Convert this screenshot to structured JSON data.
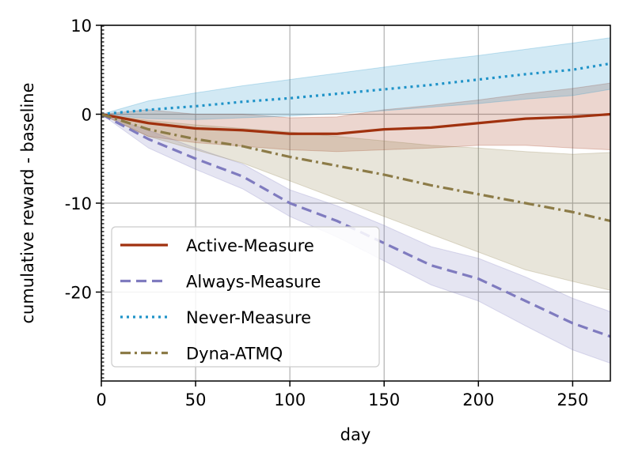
{
  "chart_data": {
    "type": "line",
    "title": "",
    "xlabel": "day",
    "ylabel": "cumulative reward - baseline",
    "xlim": [
      0,
      270
    ],
    "ylim": [
      -30,
      10
    ],
    "grid": true,
    "legend_position": "lower-left",
    "x_ticks": [
      0,
      50,
      100,
      150,
      200,
      250
    ],
    "x_tick_labels": [
      "0",
      "50",
      "100",
      "150",
      "200",
      "250"
    ],
    "y_ticks": [
      10,
      0,
      -10,
      -20
    ],
    "y_tick_labels": [
      "10",
      "0",
      "-10",
      "-20"
    ],
    "x": [
      0,
      25,
      50,
      75,
      100,
      125,
      150,
      175,
      200,
      225,
      250,
      270
    ],
    "series": [
      {
        "name": "Active-Measure",
        "color": "#a0310e",
        "dash": "solid",
        "values": [
          0,
          -1.0,
          -1.6,
          -1.8,
          -2.2,
          -2.2,
          -1.7,
          -1.5,
          -1.0,
          -0.5,
          -0.3,
          0.0
        ],
        "lower": [
          0,
          -2.5,
          -3.2,
          -3.6,
          -4.0,
          -4.2,
          -4.0,
          -3.8,
          -3.5,
          -3.5,
          -3.8,
          -4.0
        ],
        "upper": [
          0,
          0.5,
          0.0,
          0.0,
          -0.4,
          -0.3,
          0.5,
          1.0,
          1.6,
          2.3,
          2.9,
          3.5
        ]
      },
      {
        "name": "Always-Measure",
        "color": "#7f7bbf",
        "dash": "dashed",
        "values": [
          0,
          -2.8,
          -5.0,
          -7.0,
          -10.0,
          -12.0,
          -14.5,
          -17.0,
          -18.5,
          -21.0,
          -23.5,
          -25.0
        ],
        "lower": [
          0,
          -3.8,
          -6.2,
          -8.4,
          -11.5,
          -13.8,
          -16.5,
          -19.2,
          -21.0,
          -23.8,
          -26.5,
          -28.0
        ],
        "upper": [
          0,
          -1.8,
          -3.8,
          -5.6,
          -8.5,
          -10.3,
          -12.5,
          -14.9,
          -16.2,
          -18.3,
          -20.7,
          -22.2
        ]
      },
      {
        "name": "Never-Measure",
        "color": "#1f93c8",
        "dash": "dotted",
        "values": [
          0,
          0.5,
          0.9,
          1.4,
          1.8,
          2.3,
          2.8,
          3.3,
          3.9,
          4.5,
          5.0,
          5.7
        ],
        "lower": [
          0,
          -0.5,
          -0.6,
          -0.4,
          -0.2,
          0.1,
          0.4,
          0.8,
          1.2,
          1.7,
          2.1,
          2.8
        ],
        "upper": [
          0,
          1.5,
          2.4,
          3.2,
          3.9,
          4.6,
          5.3,
          6.0,
          6.6,
          7.3,
          8.0,
          8.6
        ]
      },
      {
        "name": "Dyna-ATMQ",
        "color": "#8c7b47",
        "dash": "dashdot",
        "values": [
          0,
          -1.7,
          -2.8,
          -3.6,
          -4.8,
          -5.8,
          -6.8,
          -8.0,
          -9.0,
          -10.0,
          -11.0,
          -12.0
        ],
        "lower": [
          0,
          -2.5,
          -4.0,
          -5.5,
          -7.5,
          -9.5,
          -11.5,
          -13.5,
          -15.5,
          -17.5,
          -18.8,
          -19.8
        ],
        "upper": [
          0,
          -0.7,
          -1.2,
          -1.6,
          -2.0,
          -2.5,
          -3.0,
          -3.5,
          -3.8,
          -4.2,
          -4.5,
          -4.3
        ]
      }
    ]
  }
}
